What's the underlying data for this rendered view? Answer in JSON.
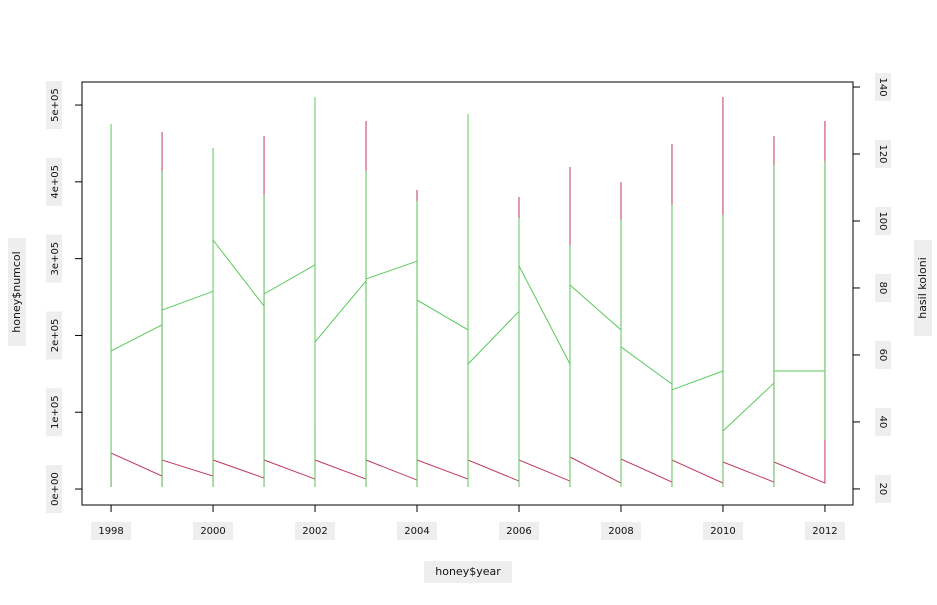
{
  "chart_data": {
    "type": "line",
    "xlabel": "honey$year",
    "ylabel": "honey$numcol",
    "y2label": "hasil koloni",
    "x": [
      1998,
      1998,
      1998,
      1999,
      1999,
      1999,
      1999,
      2000,
      2000,
      2000,
      2000,
      2001,
      2001,
      2001,
      2001,
      2002,
      2002,
      2002,
      2002,
      2003,
      2003,
      2003,
      2003,
      2004,
      2004,
      2004,
      2004,
      2005,
      2005,
      2005,
      2005,
      2006,
      2006,
      2006,
      2006,
      2007,
      2007,
      2007,
      2007,
      2008,
      2008,
      2008,
      2008,
      2009,
      2009,
      2009,
      2009,
      2010,
      2010,
      2010,
      2010,
      2011,
      2011,
      2011,
      2011,
      2012,
      2012,
      2012
    ],
    "series": [
      {
        "color": "#c0395a",
        "values": [
          46900,
          2600,
          46900,
          16900,
          464800,
          2600,
          37800,
          16900,
          63800,
          2600,
          37800,
          14300,
          459600,
          2600,
          37800,
          13000,
          83300,
          2600,
          37800,
          13000,
          479200,
          2600,
          37800,
          11700,
          389300,
          2600,
          37800,
          13000,
          76800,
          2600,
          37800,
          10400,
          380200,
          2600,
          37800,
          10400,
          419300,
          2600,
          41700,
          7800,
          399700,
          2600,
          39100,
          9100,
          449200,
          2600,
          37800,
          7800,
          510400,
          2600,
          35200,
          9100,
          459600,
          2600,
          35200,
          7800,
          479200,
          7800
        ]
      },
      {
        "color": "#5cc95c",
        "axis": "y2",
        "values": [
          129,
          20.6,
          61.2,
          69,
          115,
          20.6,
          73.4,
          79,
          121.8,
          20.6,
          94.3,
          74.6,
          107.8,
          20.6,
          78.2,
          86.9,
          137,
          20.6,
          63.9,
          82.1,
          115,
          20.6,
          82.7,
          88,
          106,
          20.6,
          76.4,
          67.5,
          132,
          20.6,
          57.3,
          73,
          100.9,
          20.6,
          86.6,
          57.3,
          92.8,
          20.6,
          80.9,
          67.5,
          100.3,
          20.6,
          62.4,
          51.3,
          104.8,
          20.6,
          49.6,
          55.2,
          101.8,
          20.6,
          37.3,
          51.6,
          116.7,
          20.6,
          55.2,
          55.2,
          118,
          34.6
        ]
      }
    ],
    "xlim": [
      1997.43,
      2012.55
    ],
    "xticks": [
      1998,
      2000,
      2002,
      2004,
      2006,
      2008,
      2010,
      2012
    ],
    "ylim": [
      -20800,
      530000
    ],
    "yticks": [
      {
        "value": 0,
        "label": "0e+00"
      },
      {
        "value": 100000,
        "label": "1e+05"
      },
      {
        "value": 200000,
        "label": "2e+05"
      },
      {
        "value": 300000,
        "label": "3e+05"
      },
      {
        "value": 400000,
        "label": "4e+05"
      },
      {
        "value": 500000,
        "label": "5e+05"
      }
    ],
    "y2lim": [
      15.2,
      141.5
    ],
    "y2ticks": [
      20,
      40,
      60,
      80,
      100,
      120,
      140
    ],
    "grid": false
  }
}
